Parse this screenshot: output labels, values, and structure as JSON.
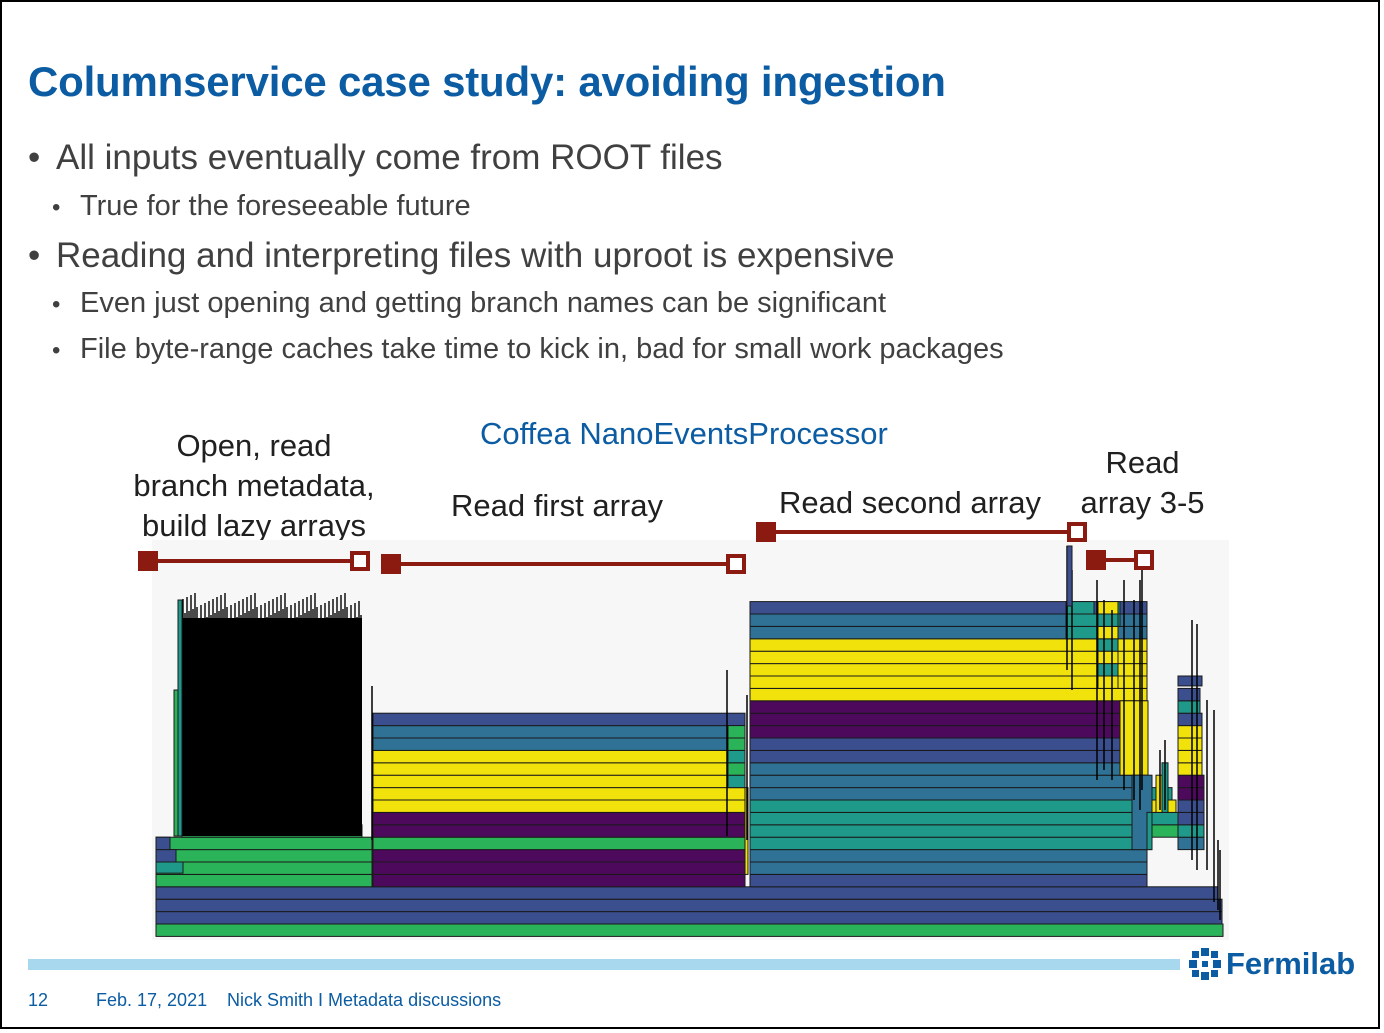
{
  "title": "Columnservice case study: avoiding ingestion",
  "bullets": [
    {
      "text": "All inputs eventually come from ROOT files",
      "level": 1
    },
    {
      "text": "True for the foreseeable future",
      "level": 2
    },
    {
      "text": "Reading and interpreting files with uproot is expensive",
      "level": 1
    },
    {
      "text": "Even just opening and getting branch names can be significant",
      "level": 2
    },
    {
      "text": "File byte-range caches take time to kick in, bad for small work packages",
      "level": 2
    }
  ],
  "figure": {
    "processor_name": "Coffea NanoEventsProcessor",
    "labels": {
      "open_line1": "Open, read",
      "open_line2": "branch metadata,",
      "open_line3": "build lazy arrays",
      "first_array": "Read first array",
      "second_array": "Read second array",
      "array35_line1": "Read",
      "array35_line2": "array 3-5"
    },
    "colors": {
      "marker": "#8b1a10",
      "green": "#2bb35a",
      "teal": "#1f9a8a",
      "blue": "#3b4f8f",
      "steel": "#2f7295",
      "yellow": "#f2e20b",
      "purple": "#4d0a5c",
      "black": "#000000"
    }
  },
  "footer": {
    "page_number": "12",
    "date": "Feb. 17, 2021",
    "author_and_topic": "Nick Smith I Metadata discussions",
    "logo_text": "Fermilab"
  }
}
